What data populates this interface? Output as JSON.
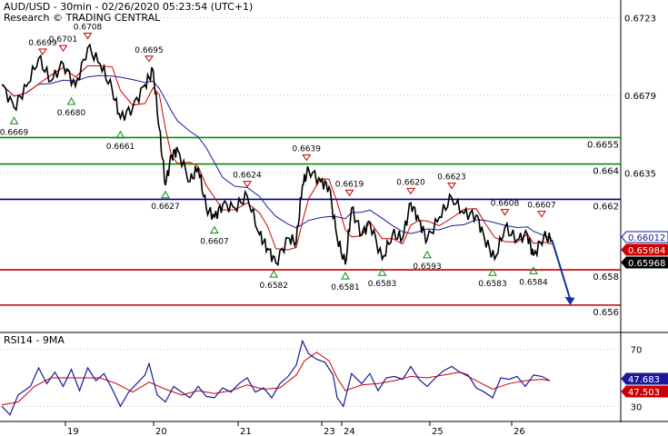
{
  "header": {
    "line1": "AUD/USD - 30min - 02/26/2020 05:23:54 (UTC+1)",
    "line2": "Research © TRADING CENTRAL"
  },
  "colors": {
    "price": "#000000",
    "ma_fast": "#cc0000",
    "ma_slow": "#1a1a99",
    "resistance": "#0a8a0a",
    "pivot": "#000080",
    "support": "#c00000",
    "arrow": "#1030a0",
    "rsi": "#1a1a99",
    "rsi_ma": "#cc0000"
  },
  "chart_data": [
    {
      "type": "line",
      "title": "AUD/USD - 30min",
      "x_days": [
        "19",
        "20",
        "21",
        "23",
        "24",
        "25",
        "26"
      ],
      "y_ticks": [
        "0.6723",
        "0.6679",
        "0.6635"
      ],
      "ylim": [
        0.6545,
        0.6733
      ],
      "levels": [
        {
          "label": "0.6655",
          "value": 0.6655,
          "kind": "resistance"
        },
        {
          "label": "0.664",
          "value": 0.664,
          "kind": "resistance"
        },
        {
          "label": "0.662",
          "value": 0.662,
          "kind": "pivot"
        },
        {
          "label": "0.658",
          "value": 0.658,
          "kind": "support"
        },
        {
          "label": "0.656",
          "value": 0.656,
          "kind": "support"
        }
      ],
      "price_badges": [
        {
          "label": "0.66012",
          "value": 0.66012,
          "style": "blue"
        },
        {
          "label": "0.65984",
          "value": 0.65984,
          "style": "red"
        },
        {
          "label": "0.65968",
          "value": 0.65968,
          "style": "black"
        }
      ],
      "highs": [
        {
          "x": 1.0,
          "label": "0.6699",
          "value": 0.6699
        },
        {
          "x": 1.5,
          "label": "0.6701",
          "value": 0.6701
        },
        {
          "x": 2.1,
          "label": "0.6708",
          "value": 0.6708
        },
        {
          "x": 3.6,
          "label": "0.6695",
          "value": 0.6695
        },
        {
          "x": 6.0,
          "label": "0.6624",
          "value": 0.6624
        },
        {
          "x": 7.45,
          "label": "0.6639",
          "value": 0.6639
        },
        {
          "x": 8.5,
          "label": "0.6619",
          "value": 0.6619
        },
        {
          "x": 10.0,
          "label": "0.6620",
          "value": 0.662
        },
        {
          "x": 11.0,
          "label": "0.6623",
          "value": 0.6623
        },
        {
          "x": 12.3,
          "label": "0.6608",
          "value": 0.6608
        },
        {
          "x": 13.2,
          "label": "0.6607",
          "value": 0.6607
        }
      ],
      "lows": [
        {
          "x": 0.3,
          "label": "0.6669",
          "value": 0.6669
        },
        {
          "x": 1.7,
          "label": "0.6680",
          "value": 0.668
        },
        {
          "x": 2.9,
          "label": "0.6661",
          "value": 0.6661
        },
        {
          "x": 4.0,
          "label": "0.6627",
          "value": 0.6627
        },
        {
          "x": 5.2,
          "label": "0.6607",
          "value": 0.6607
        },
        {
          "x": 6.65,
          "label": "0.6582",
          "value": 0.6582
        },
        {
          "x": 8.4,
          "label": "0.6581",
          "value": 0.6581
        },
        {
          "x": 9.3,
          "label": "0.6583",
          "value": 0.6583
        },
        {
          "x": 10.4,
          "label": "0.6593",
          "value": 0.6593
        },
        {
          "x": 12.0,
          "label": "0.6583",
          "value": 0.6583
        },
        {
          "x": 13.0,
          "label": "0.6584",
          "value": 0.6584
        }
      ],
      "price": [
        [
          0.0,
          0.6685
        ],
        [
          0.3,
          0.6672
        ],
        [
          0.6,
          0.6684
        ],
        [
          0.9,
          0.67
        ],
        [
          1.2,
          0.6687
        ],
        [
          1.5,
          0.6697
        ],
        [
          1.8,
          0.6684
        ],
        [
          2.1,
          0.6706
        ],
        [
          2.4,
          0.6697
        ],
        [
          2.7,
          0.6682
        ],
        [
          2.9,
          0.6666
        ],
        [
          3.2,
          0.6672
        ],
        [
          3.5,
          0.6685
        ],
        [
          3.7,
          0.6693
        ],
        [
          3.85,
          0.666
        ],
        [
          4.0,
          0.6628
        ],
        [
          4.15,
          0.6645
        ],
        [
          4.3,
          0.6648
        ],
        [
          4.6,
          0.663
        ],
        [
          4.8,
          0.6638
        ],
        [
          5.0,
          0.6615
        ],
        [
          5.2,
          0.661
        ],
        [
          5.4,
          0.6617
        ],
        [
          5.7,
          0.6615
        ],
        [
          6.0,
          0.6622
        ],
        [
          6.3,
          0.66
        ],
        [
          6.5,
          0.6592
        ],
        [
          6.7,
          0.6584
        ],
        [
          7.0,
          0.6598
        ],
        [
          7.2,
          0.6596
        ],
        [
          7.35,
          0.6628
        ],
        [
          7.5,
          0.6637
        ],
        [
          7.8,
          0.663
        ],
        [
          8.0,
          0.6627
        ],
        [
          8.2,
          0.6598
        ],
        [
          8.4,
          0.6583
        ],
        [
          8.55,
          0.6615
        ],
        [
          8.8,
          0.66
        ],
        [
          9.0,
          0.6607
        ],
        [
          9.3,
          0.6586
        ],
        [
          9.55,
          0.66
        ],
        [
          9.8,
          0.6598
        ],
        [
          10.0,
          0.6618
        ],
        [
          10.2,
          0.6608
        ],
        [
          10.4,
          0.6597
        ],
        [
          10.7,
          0.661
        ],
        [
          11.0,
          0.6621
        ],
        [
          11.3,
          0.6612
        ],
        [
          11.6,
          0.6611
        ],
        [
          11.8,
          0.6598
        ],
        [
          12.05,
          0.6586
        ],
        [
          12.3,
          0.6604
        ],
        [
          12.6,
          0.6597
        ],
        [
          12.85,
          0.66
        ],
        [
          13.0,
          0.6588
        ],
        [
          13.25,
          0.6599
        ],
        [
          13.45,
          0.6597
        ]
      ],
      "forecast": [
        [
          13.45,
          0.6597
        ],
        [
          13.9,
          0.656
        ]
      ]
    },
    {
      "type": "line",
      "title": "RSI14 - 9MA",
      "y_ticks": [
        "70",
        "30"
      ],
      "ylim": [
        20,
        80
      ],
      "badges": [
        {
          "label": "47.683",
          "value": 47.683,
          "style": "blue"
        },
        {
          "label": "47.503",
          "value": 47.503,
          "style": "red"
        }
      ],
      "rsi": [
        [
          0.0,
          30
        ],
        [
          0.2,
          24
        ],
        [
          0.4,
          38
        ],
        [
          0.7,
          44
        ],
        [
          0.9,
          57
        ],
        [
          1.1,
          46
        ],
        [
          1.3,
          54
        ],
        [
          1.5,
          44
        ],
        [
          1.7,
          56
        ],
        [
          1.9,
          41
        ],
        [
          2.1,
          57
        ],
        [
          2.3,
          48
        ],
        [
          2.5,
          53
        ],
        [
          2.7,
          42
        ],
        [
          2.9,
          30
        ],
        [
          3.1,
          40
        ],
        [
          3.3,
          46
        ],
        [
          3.5,
          52
        ],
        [
          3.6,
          60
        ],
        [
          3.8,
          38
        ],
        [
          4.0,
          33
        ],
        [
          4.2,
          44
        ],
        [
          4.4,
          40
        ],
        [
          4.6,
          36
        ],
        [
          4.8,
          44
        ],
        [
          5.0,
          37
        ],
        [
          5.2,
          36
        ],
        [
          5.4,
          43
        ],
        [
          5.6,
          40
        ],
        [
          5.8,
          46
        ],
        [
          6.0,
          50
        ],
        [
          6.2,
          40
        ],
        [
          6.4,
          43
        ],
        [
          6.6,
          36
        ],
        [
          6.8,
          46
        ],
        [
          7.0,
          51
        ],
        [
          7.2,
          59
        ],
        [
          7.35,
          76
        ],
        [
          7.5,
          67
        ],
        [
          7.7,
          63
        ],
        [
          7.9,
          61
        ],
        [
          8.1,
          52
        ],
        [
          8.2,
          36
        ],
        [
          8.35,
          30
        ],
        [
          8.55,
          53
        ],
        [
          8.8,
          46
        ],
        [
          9.0,
          53
        ],
        [
          9.2,
          41
        ],
        [
          9.4,
          50
        ],
        [
          9.6,
          51
        ],
        [
          9.8,
          49
        ],
        [
          10.0,
          58
        ],
        [
          10.2,
          49
        ],
        [
          10.4,
          44
        ],
        [
          10.6,
          50
        ],
        [
          10.8,
          55
        ],
        [
          11.0,
          58
        ],
        [
          11.2,
          54
        ],
        [
          11.4,
          52
        ],
        [
          11.6,
          43
        ],
        [
          11.8,
          40
        ],
        [
          12.0,
          36
        ],
        [
          12.2,
          50
        ],
        [
          12.4,
          49
        ],
        [
          12.6,
          51
        ],
        [
          12.8,
          44
        ],
        [
          13.0,
          52
        ],
        [
          13.2,
          51
        ],
        [
          13.4,
          48
        ]
      ],
      "rsi_ma": [
        [
          0.0,
          31
        ],
        [
          0.4,
          33
        ],
        [
          0.8,
          44
        ],
        [
          1.2,
          50
        ],
        [
          1.6,
          50
        ],
        [
          2.0,
          50
        ],
        [
          2.4,
          50
        ],
        [
          2.8,
          46
        ],
        [
          3.2,
          40
        ],
        [
          3.6,
          47
        ],
        [
          4.0,
          42
        ],
        [
          4.4,
          38
        ],
        [
          4.8,
          41
        ],
        [
          5.2,
          39
        ],
        [
          5.6,
          41
        ],
        [
          6.0,
          45
        ],
        [
          6.4,
          42
        ],
        [
          6.8,
          43
        ],
        [
          7.2,
          52
        ],
        [
          7.4,
          62
        ],
        [
          7.7,
          68
        ],
        [
          8.0,
          62
        ],
        [
          8.2,
          50
        ],
        [
          8.4,
          41
        ],
        [
          8.8,
          45
        ],
        [
          9.2,
          46
        ],
        [
          9.6,
          48
        ],
        [
          10.0,
          51
        ],
        [
          10.4,
          50
        ],
        [
          10.8,
          52
        ],
        [
          11.2,
          54
        ],
        [
          11.6,
          48
        ],
        [
          12.0,
          42
        ],
        [
          12.4,
          46
        ],
        [
          12.8,
          48
        ],
        [
          13.2,
          49
        ],
        [
          13.4,
          48
        ]
      ]
    }
  ]
}
